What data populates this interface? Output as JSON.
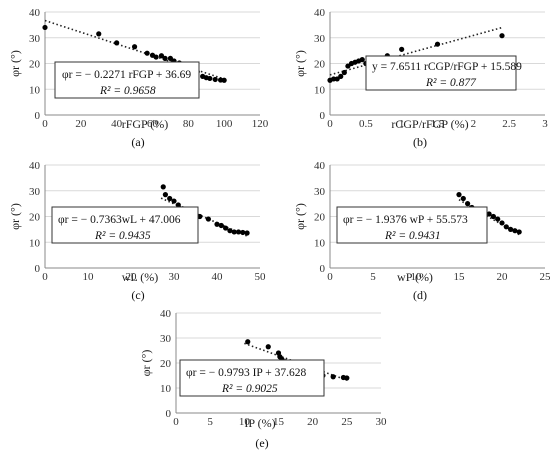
{
  "chart_data": [
    {
      "type": "scatter",
      "panel_label": "(a)",
      "ylabel": "φr (°)",
      "xlabel": "rFGP (%)",
      "xlim": [
        0,
        120
      ],
      "ylim": [
        0,
        40
      ],
      "xticks": [
        "0",
        "20",
        "40",
        "60",
        "80",
        "100",
        "120"
      ],
      "yticks": [
        "0",
        "10",
        "20",
        "30",
        "40"
      ],
      "points": [
        [
          0,
          34
        ],
        [
          30,
          31.5
        ],
        [
          40,
          28
        ],
        [
          50,
          26.5
        ],
        [
          57,
          24
        ],
        [
          60,
          23.2
        ],
        [
          62,
          22.5
        ],
        [
          65,
          23
        ],
        [
          67,
          22
        ],
        [
          70,
          22
        ],
        [
          72,
          21
        ],
        [
          75,
          20.2
        ],
        [
          78,
          19.5
        ],
        [
          80,
          18.3
        ],
        [
          85,
          16.8
        ],
        [
          88,
          15
        ],
        [
          90,
          14.5
        ],
        [
          92,
          14.2
        ],
        [
          95,
          13.8
        ],
        [
          98,
          13.6
        ],
        [
          100,
          13.5
        ]
      ],
      "trendline": {
        "slope": -0.2271,
        "intercept": 36.69,
        "x_range": [
          0,
          100
        ]
      },
      "equation": "φr = − 0.2271 rFGP + 36.69",
      "r2": "R² = 0.9658"
    },
    {
      "type": "scatter",
      "panel_label": "(b)",
      "ylabel": "φr (°)",
      "xlabel": "rCGP/rFGP (%)",
      "xlim": [
        0,
        3
      ],
      "ylim": [
        0,
        40
      ],
      "xticks": [
        "0",
        "0.5",
        "1",
        "1.5",
        "2",
        "2.5",
        "3"
      ],
      "yticks": [
        "0",
        "10",
        "20",
        "30",
        "40"
      ],
      "points": [
        [
          0,
          13.5
        ],
        [
          0.05,
          14
        ],
        [
          0.1,
          14
        ],
        [
          0.15,
          15
        ],
        [
          0.2,
          16.5
        ],
        [
          0.25,
          19
        ],
        [
          0.3,
          20
        ],
        [
          0.35,
          20.5
        ],
        [
          0.4,
          21
        ],
        [
          0.45,
          21.5
        ],
        [
          0.5,
          20
        ],
        [
          0.6,
          21.5
        ],
        [
          0.8,
          23
        ],
        [
          1.0,
          25.5
        ],
        [
          1.5,
          27.5
        ],
        [
          2.4,
          30.8
        ]
      ],
      "trendline": {
        "slope": 7.6511,
        "intercept": 15.589,
        "x_range": [
          0,
          2.4
        ]
      },
      "equation": "y = 7.6511 rCGP/rFGP + 15.589",
      "r2": "R² = 0.877"
    },
    {
      "type": "scatter",
      "panel_label": "(c)",
      "ylabel": "φr (°)",
      "xlabel": "wL (%)",
      "xlim": [
        0,
        50
      ],
      "ylim": [
        0,
        40
      ],
      "xticks": [
        "0",
        "10",
        "20",
        "30",
        "40",
        "50"
      ],
      "yticks": [
        "0",
        "10",
        "20",
        "30",
        "40"
      ],
      "points": [
        [
          27.5,
          31.5
        ],
        [
          28,
          28.5
        ],
        [
          29,
          27
        ],
        [
          30,
          26
        ],
        [
          31,
          24.5
        ],
        [
          32,
          23
        ],
        [
          33,
          22.5
        ],
        [
          34,
          21.5
        ],
        [
          35,
          21
        ],
        [
          36,
          20
        ],
        [
          38,
          19
        ],
        [
          40,
          17
        ],
        [
          41,
          16.5
        ],
        [
          42,
          15.5
        ],
        [
          43,
          14.5
        ],
        [
          44,
          14
        ],
        [
          45,
          14
        ],
        [
          46,
          13.8
        ],
        [
          47,
          13.6
        ]
      ],
      "trendline": {
        "slope": -0.7363,
        "intercept": 47.006,
        "x_range": [
          27,
          47
        ]
      },
      "equation": "φr = − 0.7363wL + 47.006",
      "r2": "R² = 0.9435"
    },
    {
      "type": "scatter",
      "panel_label": "(d)",
      "ylabel": "φr (°)",
      "xlabel": "wP (%)",
      "xlim": [
        0,
        25
      ],
      "ylim": [
        0,
        40
      ],
      "xticks": [
        "0",
        "5",
        "10",
        "15",
        "20",
        "25"
      ],
      "yticks": [
        "0",
        "10",
        "20",
        "30",
        "40"
      ],
      "points": [
        [
          15,
          28.5
        ],
        [
          15.5,
          27
        ],
        [
          16,
          25
        ],
        [
          16.5,
          23.5
        ],
        [
          17,
          22.5
        ],
        [
          17.5,
          22
        ],
        [
          18,
          21.5
        ],
        [
          18.5,
          21
        ],
        [
          19,
          20
        ],
        [
          19.5,
          19
        ],
        [
          20,
          17.5
        ],
        [
          20.5,
          16
        ],
        [
          21,
          15
        ],
        [
          21.5,
          14.5
        ],
        [
          22,
          14
        ]
      ],
      "trendline": {
        "slope": -1.9376,
        "intercept": 55.573,
        "x_range": [
          15,
          22
        ]
      },
      "equation": "φr = − 1.9376 wP + 55.573",
      "r2": "R² = 0.9431"
    },
    {
      "type": "scatter",
      "panel_label": "(e)",
      "ylabel": "φr (°)",
      "xlabel": "IP (%)",
      "xlim": [
        0,
        30
      ],
      "ylim": [
        0,
        40
      ],
      "xticks": [
        "0",
        "5",
        "10",
        "15",
        "20",
        "25",
        "30"
      ],
      "yticks": [
        "0",
        "10",
        "20",
        "30",
        "40"
      ],
      "points": [
        [
          10.5,
          28.5
        ],
        [
          13.5,
          26.5
        ],
        [
          15,
          24
        ],
        [
          15.2,
          22.5
        ],
        [
          15.5,
          21.5
        ],
        [
          16,
          20.5
        ],
        [
          17,
          18.5
        ],
        [
          18,
          17.5
        ],
        [
          20,
          16.5
        ],
        [
          21.5,
          15
        ],
        [
          23,
          14.5
        ],
        [
          24.5,
          14.2
        ],
        [
          25,
          14
        ]
      ],
      "trendline": {
        "slope": -0.9793,
        "intercept": 37.628,
        "x_range": [
          10,
          25
        ]
      },
      "equation": "φr = − 0.9793 IP + 37.628",
      "r2": "R² = 0.9025"
    }
  ]
}
